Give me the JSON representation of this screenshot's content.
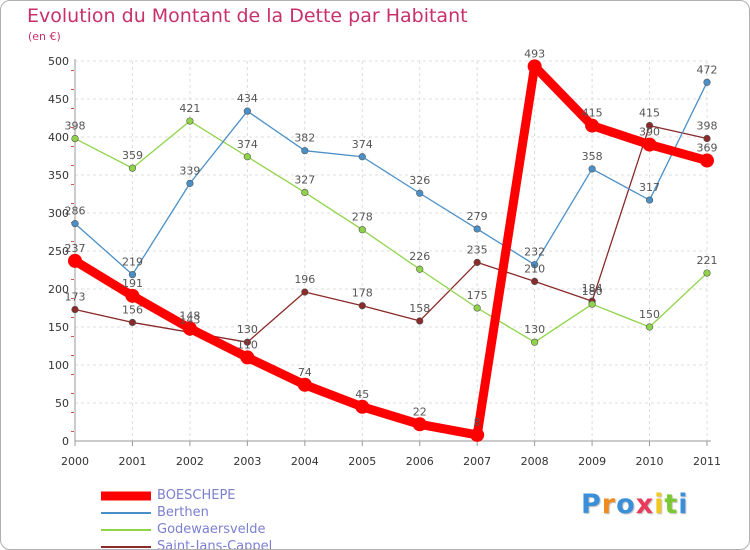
{
  "chart_data": {
    "type": "line",
    "title": "Evolution du Montant de la Dette par Habitant",
    "subtitle": "(en €)",
    "categories": [
      "2000",
      "2001",
      "2002",
      "2003",
      "2004",
      "2005",
      "2006",
      "2007",
      "2008",
      "2009",
      "2010",
      "2011"
    ],
    "yticks": [
      0,
      50,
      100,
      150,
      200,
      250,
      300,
      350,
      400,
      450,
      500
    ],
    "ylim": [
      0,
      500
    ],
    "grid": true,
    "legend_position": "bottom-left",
    "series": [
      {
        "name": "BOESCHEPE",
        "color": "#ff0000",
        "values": [
          237,
          191,
          148,
          110,
          74,
          45,
          22,
          8,
          493,
          415,
          390,
          369
        ]
      },
      {
        "name": "Berthen",
        "color": "#4a90c8",
        "values": [
          286,
          219,
          339,
          434,
          382,
          374,
          326,
          279,
          232,
          358,
          317,
          472
        ]
      },
      {
        "name": "Godewaersvelde",
        "color": "#8fd448",
        "values": [
          398,
          359,
          421,
          374,
          327,
          278,
          226,
          175,
          130,
          180,
          150,
          221
        ]
      },
      {
        "name": "Saint-Jans-Cappel",
        "color": "#8b2a2a",
        "values": [
          173,
          156,
          143,
          130,
          196,
          178,
          158,
          235,
          210,
          184,
          415,
          398
        ]
      }
    ]
  },
  "logo": {
    "letters": [
      "P",
      "r",
      "o",
      "x",
      "i",
      "t",
      "i"
    ],
    "colors": [
      "#3a8fd8",
      "#f08c1e",
      "#3a8fd8",
      "#e83a5a",
      "#f0c81e",
      "#7cc832",
      "#3a8fd8"
    ]
  }
}
